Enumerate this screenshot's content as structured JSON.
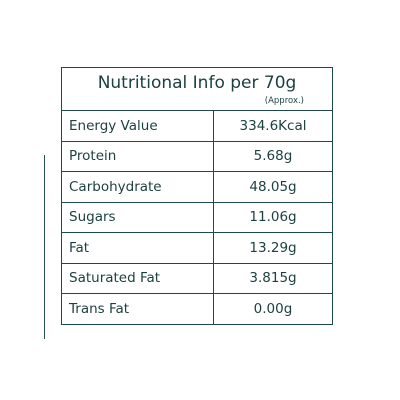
{
  "header": {
    "title": "Nutritional Info per 70g",
    "note": "(Approx.)"
  },
  "table": {
    "rows": [
      [
        "Energy Value",
        "334.6Kcal"
      ],
      [
        "Protein",
        "5.68g"
      ],
      [
        "Carbohydrate",
        "48.05g"
      ],
      [
        "Sugars",
        "11.06g"
      ],
      [
        "Fat",
        "13.29g"
      ],
      [
        "Saturated Fat",
        "3.815g"
      ],
      [
        "Trans Fat",
        "0.00g"
      ]
    ]
  }
}
